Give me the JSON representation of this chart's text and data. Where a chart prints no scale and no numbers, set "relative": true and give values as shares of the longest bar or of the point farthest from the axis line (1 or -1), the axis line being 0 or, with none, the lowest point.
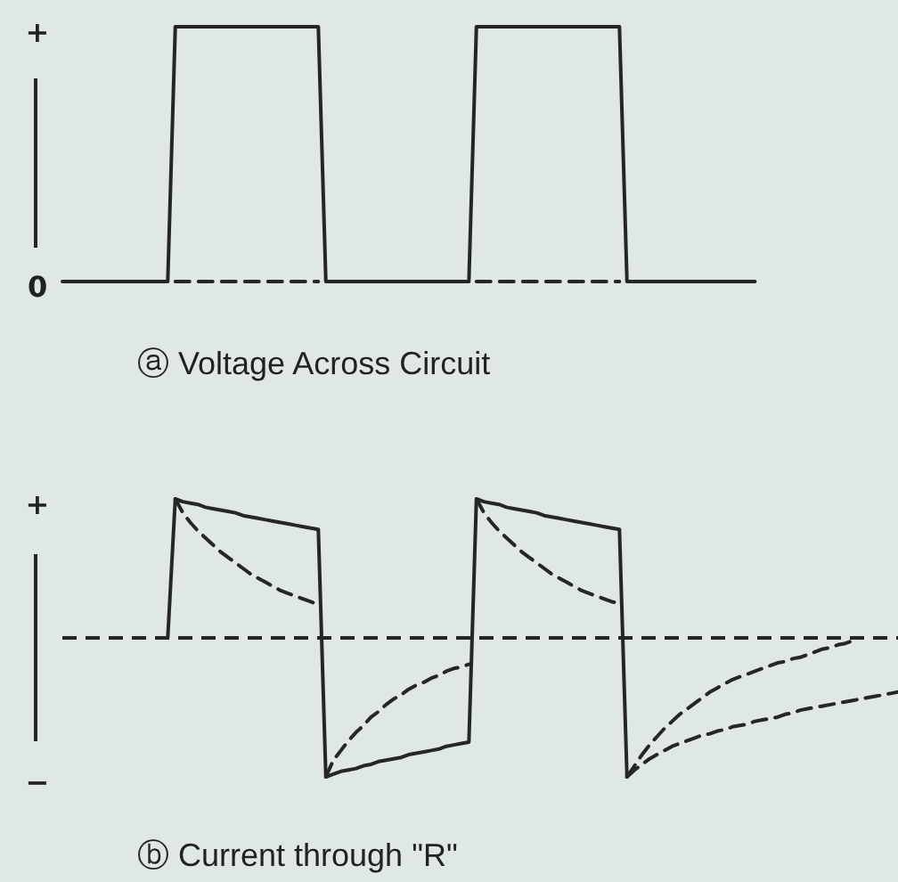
{
  "chart_data": [
    {
      "type": "line",
      "title": "ⓐ Voltage Across Circuit",
      "relative": true,
      "annotations": [
        "+",
        "0"
      ],
      "categories": [
        null,
        null,
        null,
        null,
        null,
        null,
        null,
        null,
        null,
        null,
        null,
        null,
        null,
        null,
        null,
        null,
        null,
        null,
        null,
        null,
        null,
        null,
        null,
        null,
        null,
        null,
        null,
        null,
        null,
        null,
        null,
        null,
        null,
        null,
        null,
        null,
        null,
        null,
        null,
        null,
        null,
        null,
        null,
        null,
        null,
        null,
        null,
        null,
        null,
        null,
        null,
        null,
        null,
        null,
        null,
        null,
        null,
        null,
        null,
        null,
        null,
        null,
        null,
        null,
        null,
        null,
        null,
        null,
        null,
        null,
        null,
        null,
        null,
        null,
        null,
        null,
        null,
        null,
        null,
        null,
        null,
        null,
        null,
        null,
        null,
        null,
        null,
        null,
        null,
        null,
        null,
        null,
        null,
        null,
        null,
        null,
        null,
        null,
        null,
        null,
        null,
        null,
        null,
        null,
        null,
        null,
        null,
        null,
        null,
        null,
        null,
        null
      ],
      "series": [
        {
          "color": "#262626",
          "line_style": "solid",
          "values": [
            0,
            0,
            0,
            0,
            0,
            0,
            0,
            0,
            0,
            0,
            0,
            0,
            0,
            0,
            0,
            1,
            1,
            1,
            1,
            1,
            1,
            1,
            1,
            1,
            1,
            1,
            1,
            1,
            1,
            1,
            1,
            1,
            1,
            1,
            1,
            0,
            0,
            0,
            0,
            0,
            0,
            0,
            0,
            0,
            0,
            0,
            0,
            0,
            0,
            0,
            0,
            0,
            0,
            0,
            0,
            1,
            1,
            1,
            1,
            1,
            1,
            1,
            1,
            1,
            1,
            1,
            1,
            1,
            1,
            1,
            1,
            1,
            1,
            1,
            1,
            0,
            0,
            0,
            0,
            0,
            0,
            0,
            0,
            0,
            0,
            0,
            0,
            0,
            0,
            0,
            0,
            0,
            0,
            null,
            null,
            null,
            null,
            null,
            null,
            null,
            null,
            null,
            null,
            null,
            null,
            null,
            null,
            null,
            null,
            null,
            null,
            null
          ]
        },
        {
          "color": "#262626",
          "line_style": "dashed",
          "values": [
            null,
            null,
            null,
            null,
            null,
            null,
            null,
            null,
            null,
            null,
            null,
            null,
            null,
            null,
            null,
            0,
            0,
            0,
            0,
            0,
            0,
            0,
            0,
            0,
            0,
            0,
            0,
            0,
            0,
            0,
            0,
            0,
            0,
            0,
            0,
            null,
            null,
            null,
            null,
            null,
            null,
            null,
            null,
            null,
            null,
            null,
            null,
            null,
            null,
            null,
            null,
            null,
            null,
            null,
            null,
            0,
            0,
            0,
            0,
            0,
            0,
            0,
            0,
            0,
            0,
            0,
            0,
            0,
            0,
            0,
            0,
            0,
            0,
            0,
            0,
            null,
            null,
            null,
            null,
            null,
            null,
            null,
            null,
            null,
            null,
            null,
            null,
            null,
            null,
            null,
            null,
            null,
            null,
            null,
            null,
            null,
            null,
            null,
            null,
            null,
            null,
            null,
            null,
            null,
            null,
            null,
            null,
            null,
            null,
            null,
            null,
            null
          ]
        }
      ]
    },
    {
      "type": "line",
      "title": "ⓑ Current through \"R\"",
      "relative": true,
      "annotations": [
        "+",
        "−"
      ],
      "ref_lines": [
        {
          "axis": "y",
          "value": 0,
          "line_style": "dashed",
          "color": "#262626"
        }
      ],
      "categories": [
        null,
        null,
        null,
        null,
        null,
        null,
        null,
        null,
        null,
        null,
        null,
        null,
        null,
        null,
        null,
        null,
        null,
        null,
        null,
        null,
        null,
        null,
        null,
        null,
        null,
        null,
        null,
        null,
        null,
        null,
        null,
        null,
        null,
        null,
        null,
        null,
        null,
        null,
        null,
        null,
        null,
        null,
        null,
        null,
        null,
        null,
        null,
        null,
        null,
        null,
        null,
        null,
        null,
        null,
        null,
        null,
        null,
        null,
        null,
        null,
        null,
        null,
        null,
        null,
        null,
        null,
        null,
        null,
        null,
        null,
        null,
        null,
        null,
        null,
        null,
        null,
        null,
        null,
        null,
        null,
        null,
        null,
        null,
        null,
        null,
        null,
        null,
        null,
        null,
        null,
        null,
        null,
        null,
        null,
        null,
        null,
        null,
        null,
        null,
        null,
        null,
        null,
        null,
        null,
        null,
        null,
        null,
        null,
        null,
        null,
        null,
        null
      ],
      "series": [
        {
          "color": "#262626",
          "line_style": "solid",
          "values": [
            null,
            null,
            null,
            null,
            null,
            null,
            null,
            null,
            null,
            null,
            null,
            null,
            null,
            null,
            0,
            1,
            0.98,
            0.97,
            0.96,
            0.94,
            0.93,
            0.92,
            0.91,
            0.9,
            0.88,
            0.87,
            0.86,
            0.85,
            0.84,
            0.83,
            0.82,
            0.81,
            0.8,
            0.79,
            0.78,
            -1,
            -0.98,
            -0.96,
            -0.95,
            -0.94,
            -0.92,
            -0.91,
            -0.89,
            -0.88,
            -0.87,
            -0.86,
            -0.84,
            -0.83,
            -0.82,
            -0.81,
            -0.8,
            -0.78,
            -0.77,
            -0.76,
            -0.75,
            1,
            0.98,
            0.97,
            0.96,
            0.94,
            0.93,
            0.92,
            0.91,
            0.9,
            0.88,
            0.87,
            0.86,
            0.85,
            0.84,
            0.83,
            0.82,
            0.81,
            0.8,
            0.79,
            0.78,
            -1,
            null,
            null,
            null,
            null,
            null,
            null,
            null,
            null,
            null,
            null,
            null,
            null,
            null,
            null,
            null,
            null,
            null,
            null,
            null,
            null,
            null,
            null,
            null,
            null,
            null,
            null,
            null,
            null,
            null,
            null,
            null,
            null,
            null,
            null,
            null,
            null
          ]
        },
        {
          "color": "#262626",
          "line_style": "dashed",
          "values": [
            null,
            null,
            null,
            null,
            null,
            null,
            null,
            null,
            null,
            null,
            null,
            null,
            null,
            null,
            null,
            1,
            0.9,
            0.83,
            0.77,
            0.72,
            0.67,
            0.62,
            0.58,
            0.54,
            0.5,
            0.46,
            0.43,
            0.4,
            0.37,
            0.34,
            0.32,
            0.3,
            0.28,
            0.26,
            0.24,
            null,
            null,
            null,
            null,
            null,
            null,
            null,
            null,
            null,
            null,
            null,
            null,
            null,
            null,
            null,
            null,
            null,
            null,
            null,
            null,
            null,
            null,
            null,
            null,
            null,
            null,
            null,
            null,
            null,
            null,
            null,
            null,
            null,
            null,
            null,
            null,
            null,
            null,
            null,
            null,
            null,
            null,
            null,
            null,
            null,
            null,
            null,
            null,
            null,
            null,
            null,
            null,
            null,
            null,
            null,
            null,
            null,
            null,
            null,
            null,
            null,
            null,
            null,
            null,
            null,
            null,
            null,
            null,
            null,
            null,
            null,
            null,
            null,
            null,
            null,
            null,
            null
          ]
        },
        {
          "color": "#262626",
          "line_style": "dashed",
          "values": [
            null,
            null,
            null,
            null,
            null,
            null,
            null,
            null,
            null,
            null,
            null,
            null,
            null,
            null,
            null,
            null,
            null,
            null,
            null,
            null,
            null,
            null,
            null,
            null,
            null,
            null,
            null,
            null,
            null,
            null,
            null,
            null,
            null,
            null,
            null,
            -1,
            -0.88,
            -0.81,
            -0.74,
            -0.68,
            -0.63,
            -0.57,
            -0.53,
            -0.48,
            -0.44,
            -0.41,
            -0.37,
            -0.34,
            -0.32,
            -0.29,
            -0.27,
            -0.24,
            -0.22,
            -0.21,
            -0.19,
            null,
            null,
            null,
            null,
            null,
            null,
            null,
            null,
            null,
            null,
            null,
            null,
            null,
            null,
            null,
            null,
            null,
            null,
            null,
            null,
            null,
            null,
            null,
            null,
            null,
            null,
            null,
            null,
            null,
            null,
            null,
            null,
            null,
            null,
            null,
            null,
            null,
            null,
            null,
            null,
            null,
            null,
            null,
            null,
            null,
            null,
            null,
            null,
            null,
            null,
            null,
            null,
            null,
            null,
            null,
            null,
            null
          ]
        },
        {
          "color": "#262626",
          "line_style": "dashed",
          "values": [
            null,
            null,
            null,
            null,
            null,
            null,
            null,
            null,
            null,
            null,
            null,
            null,
            null,
            null,
            null,
            null,
            null,
            null,
            null,
            null,
            null,
            null,
            null,
            null,
            null,
            null,
            null,
            null,
            null,
            null,
            null,
            null,
            null,
            null,
            null,
            null,
            null,
            null,
            null,
            null,
            null,
            null,
            null,
            null,
            null,
            null,
            null,
            null,
            null,
            null,
            null,
            null,
            null,
            null,
            null,
            1,
            0.9,
            0.83,
            0.77,
            0.72,
            0.67,
            0.62,
            0.58,
            0.54,
            0.5,
            0.46,
            0.43,
            0.4,
            0.37,
            0.34,
            0.32,
            0.3,
            0.28,
            0.26,
            0.25,
            null,
            null,
            null,
            null,
            null,
            null,
            null,
            null,
            null,
            null,
            null,
            null,
            null,
            null,
            null,
            null,
            null,
            null,
            null,
            null,
            null,
            null,
            null,
            null,
            null,
            null,
            null,
            null,
            null,
            null,
            null,
            null,
            null,
            null,
            null,
            null,
            null
          ]
        },
        {
          "color": "#262626",
          "line_style": "dashed",
          "values": [
            null,
            null,
            null,
            null,
            null,
            null,
            null,
            null,
            null,
            null,
            null,
            null,
            null,
            null,
            null,
            null,
            null,
            null,
            null,
            null,
            null,
            null,
            null,
            null,
            null,
            null,
            null,
            null,
            null,
            null,
            null,
            null,
            null,
            null,
            null,
            null,
            null,
            null,
            null,
            null,
            null,
            null,
            null,
            null,
            null,
            null,
            null,
            null,
            null,
            null,
            null,
            null,
            null,
            null,
            null,
            null,
            null,
            null,
            null,
            null,
            null,
            null,
            null,
            null,
            null,
            null,
            null,
            null,
            null,
            null,
            null,
            null,
            null,
            null,
            null,
            -1,
            -0.92,
            -0.84,
            -0.77,
            -0.71,
            -0.65,
            -0.6,
            -0.55,
            -0.51,
            -0.47,
            -0.43,
            -0.39,
            -0.36,
            -0.33,
            -0.3,
            -0.28,
            -0.26,
            -0.24,
            -0.22,
            -0.2,
            -0.18,
            -0.17,
            -0.15,
            -0.14,
            -0.12,
            -0.1,
            -0.08,
            -0.07,
            -0.05,
            -0.04,
            -0.02,
            null,
            null,
            null,
            null,
            null,
            null
          ]
        },
        {
          "color": "#262626",
          "line_style": "dashed",
          "values": [
            null,
            null,
            null,
            null,
            null,
            null,
            null,
            null,
            null,
            null,
            null,
            null,
            null,
            null,
            null,
            null,
            null,
            null,
            null,
            null,
            null,
            null,
            null,
            null,
            null,
            null,
            null,
            null,
            null,
            null,
            null,
            null,
            null,
            null,
            null,
            null,
            null,
            null,
            null,
            null,
            null,
            null,
            null,
            null,
            null,
            null,
            null,
            null,
            null,
            null,
            null,
            null,
            null,
            null,
            null,
            null,
            null,
            null,
            null,
            null,
            null,
            null,
            null,
            null,
            null,
            null,
            null,
            null,
            null,
            null,
            null,
            null,
            null,
            null,
            null,
            -1,
            -0.95,
            -0.91,
            -0.87,
            -0.84,
            -0.81,
            -0.78,
            -0.76,
            -0.74,
            -0.72,
            -0.7,
            -0.69,
            -0.67,
            -0.66,
            -0.64,
            -0.63,
            -0.62,
            -0.6,
            -0.59,
            -0.58,
            -0.57,
            -0.55,
            -0.54,
            -0.52,
            -0.51,
            -0.5,
            -0.49,
            -0.48,
            -0.47,
            -0.46,
            -0.45,
            -0.44,
            -0.43,
            -0.42,
            -0.41,
            -0.4,
            -0.39
          ]
        }
      ]
    }
  ]
}
